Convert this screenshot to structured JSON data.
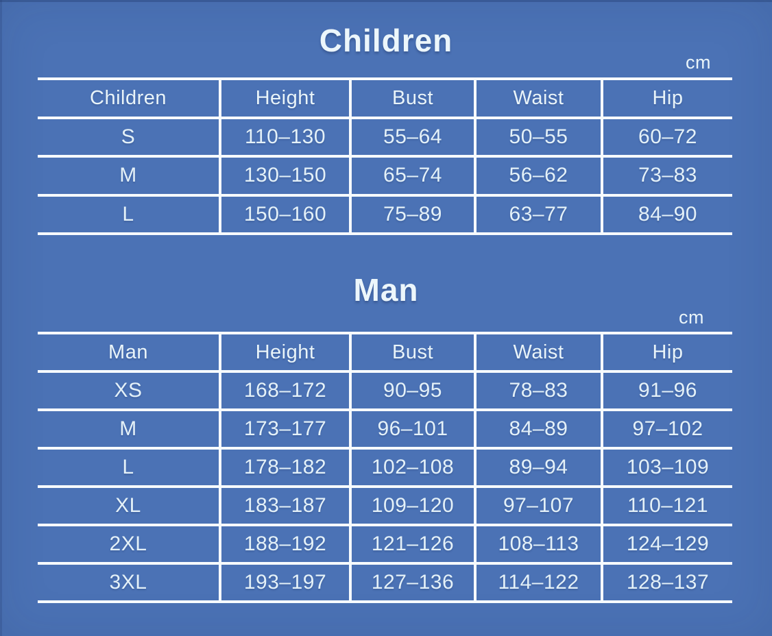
{
  "colors": {
    "background": "#4b72b5",
    "line": "#f7fbfd",
    "text": "#e4f1f8"
  },
  "children": {
    "title": "Children",
    "unit": "cm",
    "header": [
      "Children",
      "Height",
      "Bust",
      "Waist",
      "Hip"
    ],
    "rows": [
      [
        "S",
        "110–130",
        "55–64",
        "50–55",
        "60–72"
      ],
      [
        "M",
        "130–150",
        "65–74",
        "56–62",
        "73–83"
      ],
      [
        "L",
        "150–160",
        "75–89",
        "63–77",
        "84–90"
      ]
    ]
  },
  "man": {
    "title": "Man",
    "unit": "cm",
    "header": [
      "Man",
      "Height",
      "Bust",
      "Waist",
      "Hip"
    ],
    "rows": [
      [
        "XS",
        "168–172",
        "90–95",
        "78–83",
        "91–96"
      ],
      [
        "M",
        "173–177",
        "96–101",
        "84–89",
        "97–102"
      ],
      [
        "L",
        "178–182",
        "102–108",
        "89–94",
        "103–109"
      ],
      [
        "XL",
        "183–187",
        "109–120",
        "97–107",
        "110–121"
      ],
      [
        "2XL",
        "188–192",
        "121–126",
        "108–113",
        "124–129"
      ],
      [
        "3XL",
        "193–197",
        "127–136",
        "114–122",
        "128–137"
      ]
    ]
  },
  "chart_data": [
    {
      "type": "table",
      "title": "Children",
      "unit": "cm",
      "columns": [
        "Children",
        "Height",
        "Bust",
        "Waist",
        "Hip"
      ],
      "rows": [
        [
          "S",
          "110–130",
          "55–64",
          "50–55",
          "60–72"
        ],
        [
          "M",
          "130–150",
          "65–74",
          "56–62",
          "73–83"
        ],
        [
          "L",
          "150–160",
          "75–89",
          "63–77",
          "84–90"
        ]
      ]
    },
    {
      "type": "table",
      "title": "Man",
      "unit": "cm",
      "columns": [
        "Man",
        "Height",
        "Bust",
        "Waist",
        "Hip"
      ],
      "rows": [
        [
          "XS",
          "168–172",
          "90–95",
          "78–83",
          "91–96"
        ],
        [
          "M",
          "173–177",
          "96–101",
          "84–89",
          "97–102"
        ],
        [
          "L",
          "178–182",
          "102–108",
          "89–94",
          "103–109"
        ],
        [
          "XL",
          "183–187",
          "109–120",
          "97–107",
          "110–121"
        ],
        [
          "2XL",
          "188–192",
          "121–126",
          "108–113",
          "124–129"
        ],
        [
          "3XL",
          "193–197",
          "127–136",
          "114–122",
          "128–137"
        ]
      ]
    }
  ]
}
